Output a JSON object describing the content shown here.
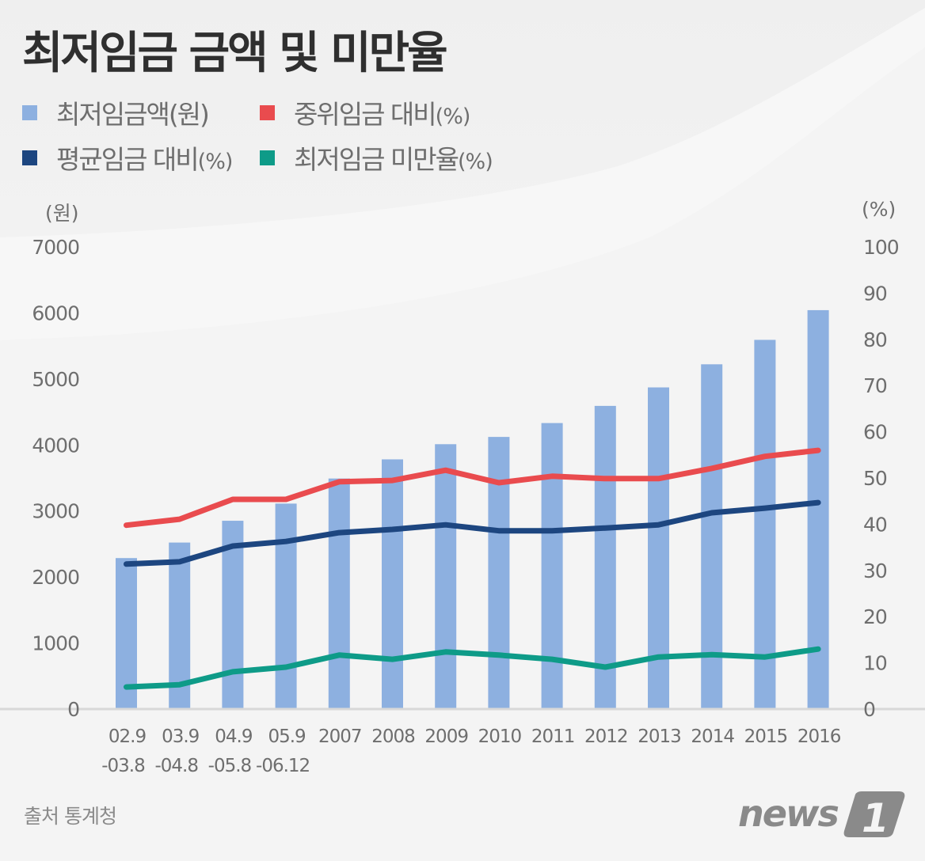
{
  "title": "최저임금 금액 및 미만율",
  "legend": [
    {
      "key": "wage",
      "label": "최저임금액",
      "unit": "(원)",
      "color": "#8db0e0",
      "icon": "square-swatch"
    },
    {
      "key": "median",
      "label": "중위임금 대비",
      "unit": "(%)",
      "color": "#e94b4e",
      "icon": "square-swatch"
    },
    {
      "key": "mean",
      "label": "평균임금 대비",
      "unit": "(%)",
      "color": "#1d4680",
      "icon": "square-swatch"
    },
    {
      "key": "below",
      "label": "최저임금 미만율",
      "unit": "(%)",
      "color": "#0e9b88",
      "icon": "square-swatch"
    }
  ],
  "axes": {
    "left_unit": "(원)",
    "right_unit": "(%)"
  },
  "source": "출처 통계청",
  "logo": {
    "text": "news",
    "mark": "1"
  },
  "chart_data": {
    "type": "bar",
    "title": "최저임금 금액 및 미만율",
    "categories": [
      [
        "02.9",
        "-03.8"
      ],
      [
        "03.9",
        "-04.8"
      ],
      [
        "04.9",
        "-05.8"
      ],
      [
        "05.9",
        "-06.12"
      ],
      [
        "2007"
      ],
      [
        "2008"
      ],
      [
        "2009"
      ],
      [
        "2010"
      ],
      [
        "2011"
      ],
      [
        "2012"
      ],
      [
        "2013"
      ],
      [
        "2014"
      ],
      [
        "2015"
      ],
      [
        "2016"
      ]
    ],
    "xlabel": "",
    "y_left": {
      "label": "(원)",
      "range": [
        0,
        7000
      ],
      "ticks": [
        0,
        1000,
        2000,
        3000,
        4000,
        5000,
        6000,
        7000
      ]
    },
    "y_right": {
      "label": "(%)",
      "range": [
        0,
        100
      ],
      "ticks": [
        0,
        10,
        20,
        30,
        40,
        50,
        60,
        70,
        80,
        90,
        100
      ]
    },
    "grid": false,
    "legend_position": "top-left",
    "series": [
      {
        "name": "최저임금액(원)",
        "type": "bar",
        "axis": "left",
        "color": "#8db0e0",
        "values": [
          2275,
          2510,
          2840,
          3100,
          3480,
          3770,
          4000,
          4110,
          4320,
          4580,
          4860,
          5210,
          5580,
          6030
        ]
      },
      {
        "name": "중위임금 대비(%)",
        "type": "line",
        "axis": "right",
        "color": "#e94b4e",
        "values": [
          39.6,
          40.9,
          45.2,
          45.2,
          49.0,
          49.3,
          51.5,
          48.8,
          50.2,
          49.7,
          49.7,
          51.9,
          54.5,
          55.8
        ]
      },
      {
        "name": "평균임금 대비(%)",
        "type": "line",
        "axis": "right",
        "color": "#1d4680",
        "values": [
          31.2,
          31.7,
          35.1,
          36.1,
          38.0,
          38.7,
          39.7,
          38.4,
          38.4,
          39.0,
          39.7,
          42.3,
          43.3,
          44.5
        ]
      },
      {
        "name": "최저임금 미만율(%)",
        "type": "line",
        "axis": "right",
        "color": "#0e9b88",
        "values": [
          4.6,
          5.1,
          7.9,
          8.9,
          11.5,
          10.6,
          12.2,
          11.5,
          10.6,
          8.9,
          11.1,
          11.6,
          11.1,
          12.8
        ]
      }
    ]
  }
}
